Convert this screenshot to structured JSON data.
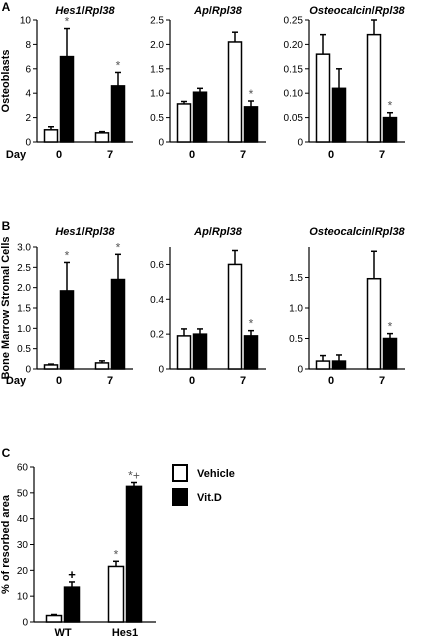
{
  "chart_data": [
    {
      "type": "bar",
      "panel": "A",
      "ylabel": "Osteoblasts",
      "title": {
        "gene": "Hes1",
        "ref": "Rpl38"
      },
      "x_axis_label": "Day",
      "categories": [
        "0",
        "7"
      ],
      "ylim": [
        0,
        10
      ],
      "yticks": [
        "0",
        "2",
        "4",
        "6",
        "8",
        "10"
      ],
      "series": [
        {
          "fill": "#ffffff",
          "values": [
            1.0,
            0.75
          ],
          "errors": [
            0.25,
            0.1
          ]
        },
        {
          "fill": "#000000",
          "values": [
            7.0,
            4.6
          ],
          "errors": [
            2.3,
            1.1
          ]
        }
      ],
      "annotations": [
        {
          "series": 1,
          "index": 0,
          "text": "*"
        },
        {
          "series": 1,
          "index": 1,
          "text": "*"
        }
      ]
    },
    {
      "type": "bar",
      "panel": "",
      "title": {
        "gene": "Ap",
        "ref": "Rpl38"
      },
      "categories": [
        "0",
        "7"
      ],
      "ylim": [
        0,
        2.5
      ],
      "yticks": [
        "0",
        "0.5",
        "1.0",
        "1.5",
        "2.0",
        "2.5"
      ],
      "series": [
        {
          "fill": "#ffffff",
          "values": [
            0.78,
            2.05
          ],
          "errors": [
            0.05,
            0.2
          ]
        },
        {
          "fill": "#000000",
          "values": [
            1.02,
            0.72
          ],
          "errors": [
            0.08,
            0.12
          ]
        }
      ],
      "annotations": [
        {
          "series": 1,
          "index": 1,
          "text": "*"
        }
      ]
    },
    {
      "type": "bar",
      "panel": "",
      "title": {
        "gene": "Osteocalcin",
        "ref": "Rpl38"
      },
      "categories": [
        "0",
        "7"
      ],
      "ylim": [
        0,
        0.25
      ],
      "yticks": [
        "0",
        "0.05",
        "0.10",
        "0.15",
        "0.20",
        "0.25"
      ],
      "series": [
        {
          "fill": "#ffffff",
          "values": [
            0.18,
            0.22
          ],
          "errors": [
            0.04,
            0.03
          ]
        },
        {
          "fill": "#000000",
          "values": [
            0.11,
            0.05
          ],
          "errors": [
            0.04,
            0.01
          ]
        }
      ],
      "annotations": [
        {
          "series": 1,
          "index": 1,
          "text": "*"
        }
      ]
    },
    {
      "type": "bar",
      "panel": "B",
      "ylabel": "Bone Marrow Stromal Cells",
      "title": {
        "gene": "Hes1",
        "ref": "Rpl38"
      },
      "x_axis_label": "Day",
      "categories": [
        "0",
        "7"
      ],
      "ylim": [
        0,
        3.0
      ],
      "yticks": [
        "0",
        "0.5",
        "1.0",
        "1.5",
        "2.0",
        "2.5",
        "3.0"
      ],
      "series": [
        {
          "fill": "#ffffff",
          "values": [
            0.1,
            0.15
          ],
          "errors": [
            0.02,
            0.05
          ]
        },
        {
          "fill": "#000000",
          "values": [
            1.92,
            2.2
          ],
          "errors": [
            0.7,
            0.62
          ]
        }
      ],
      "annotations": [
        {
          "series": 1,
          "index": 0,
          "text": "*"
        },
        {
          "series": 1,
          "index": 1,
          "text": "*"
        }
      ]
    },
    {
      "type": "bar",
      "panel": "",
      "title": {
        "gene": "Ap",
        "ref": "Rpl38"
      },
      "categories": [
        "0",
        "7"
      ],
      "ylim": [
        0,
        0.7
      ],
      "yticks": [
        "0",
        "0.2",
        "0.4",
        "0.6"
      ],
      "series": [
        {
          "fill": "#ffffff",
          "values": [
            0.19,
            0.6
          ],
          "errors": [
            0.04,
            0.08
          ]
        },
        {
          "fill": "#000000",
          "values": [
            0.2,
            0.19
          ],
          "errors": [
            0.03,
            0.03
          ]
        }
      ],
      "annotations": [
        {
          "series": 1,
          "index": 1,
          "text": "*"
        }
      ]
    },
    {
      "type": "bar",
      "panel": "",
      "title": {
        "gene": "Osteocalcin",
        "ref": "Rpl38"
      },
      "categories": [
        "0",
        "7"
      ],
      "ylim": [
        0,
        2.0
      ],
      "yticks": [
        "0",
        "0.5",
        "1.0",
        "1.5"
      ],
      "series": [
        {
          "fill": "#ffffff",
          "values": [
            0.13,
            1.48
          ],
          "errors": [
            0.09,
            0.45
          ]
        },
        {
          "fill": "#000000",
          "values": [
            0.13,
            0.5
          ],
          "errors": [
            0.1,
            0.08
          ]
        }
      ],
      "annotations": [
        {
          "series": 1,
          "index": 1,
          "text": "*"
        }
      ]
    },
    {
      "type": "bar",
      "panel": "C",
      "ylabel": "% of resorbed area",
      "categories": [
        "WT",
        "Hes1"
      ],
      "ylim": [
        0,
        60
      ],
      "yticks": [
        "0",
        "10",
        "20",
        "30",
        "40",
        "50",
        "60"
      ],
      "legend": {
        "position": "top-right",
        "entries": [
          {
            "label": "Vehicle",
            "fill": "#ffffff"
          },
          {
            "label": "Vit.D",
            "fill": "#000000"
          }
        ]
      },
      "series": [
        {
          "name": "Vehicle",
          "fill": "#ffffff",
          "values": [
            2.5,
            21.5
          ],
          "errors": [
            0.4,
            2.0
          ]
        },
        {
          "name": "Vit.D",
          "fill": "#000000",
          "values": [
            13.5,
            52.5
          ],
          "errors": [
            2.0,
            1.5
          ]
        }
      ],
      "annotations": [
        {
          "series": 1,
          "index": 0,
          "text": "+"
        },
        {
          "series": 0,
          "index": 1,
          "text": "*"
        },
        {
          "series": 1,
          "index": 1,
          "text": "*+"
        }
      ]
    }
  ]
}
